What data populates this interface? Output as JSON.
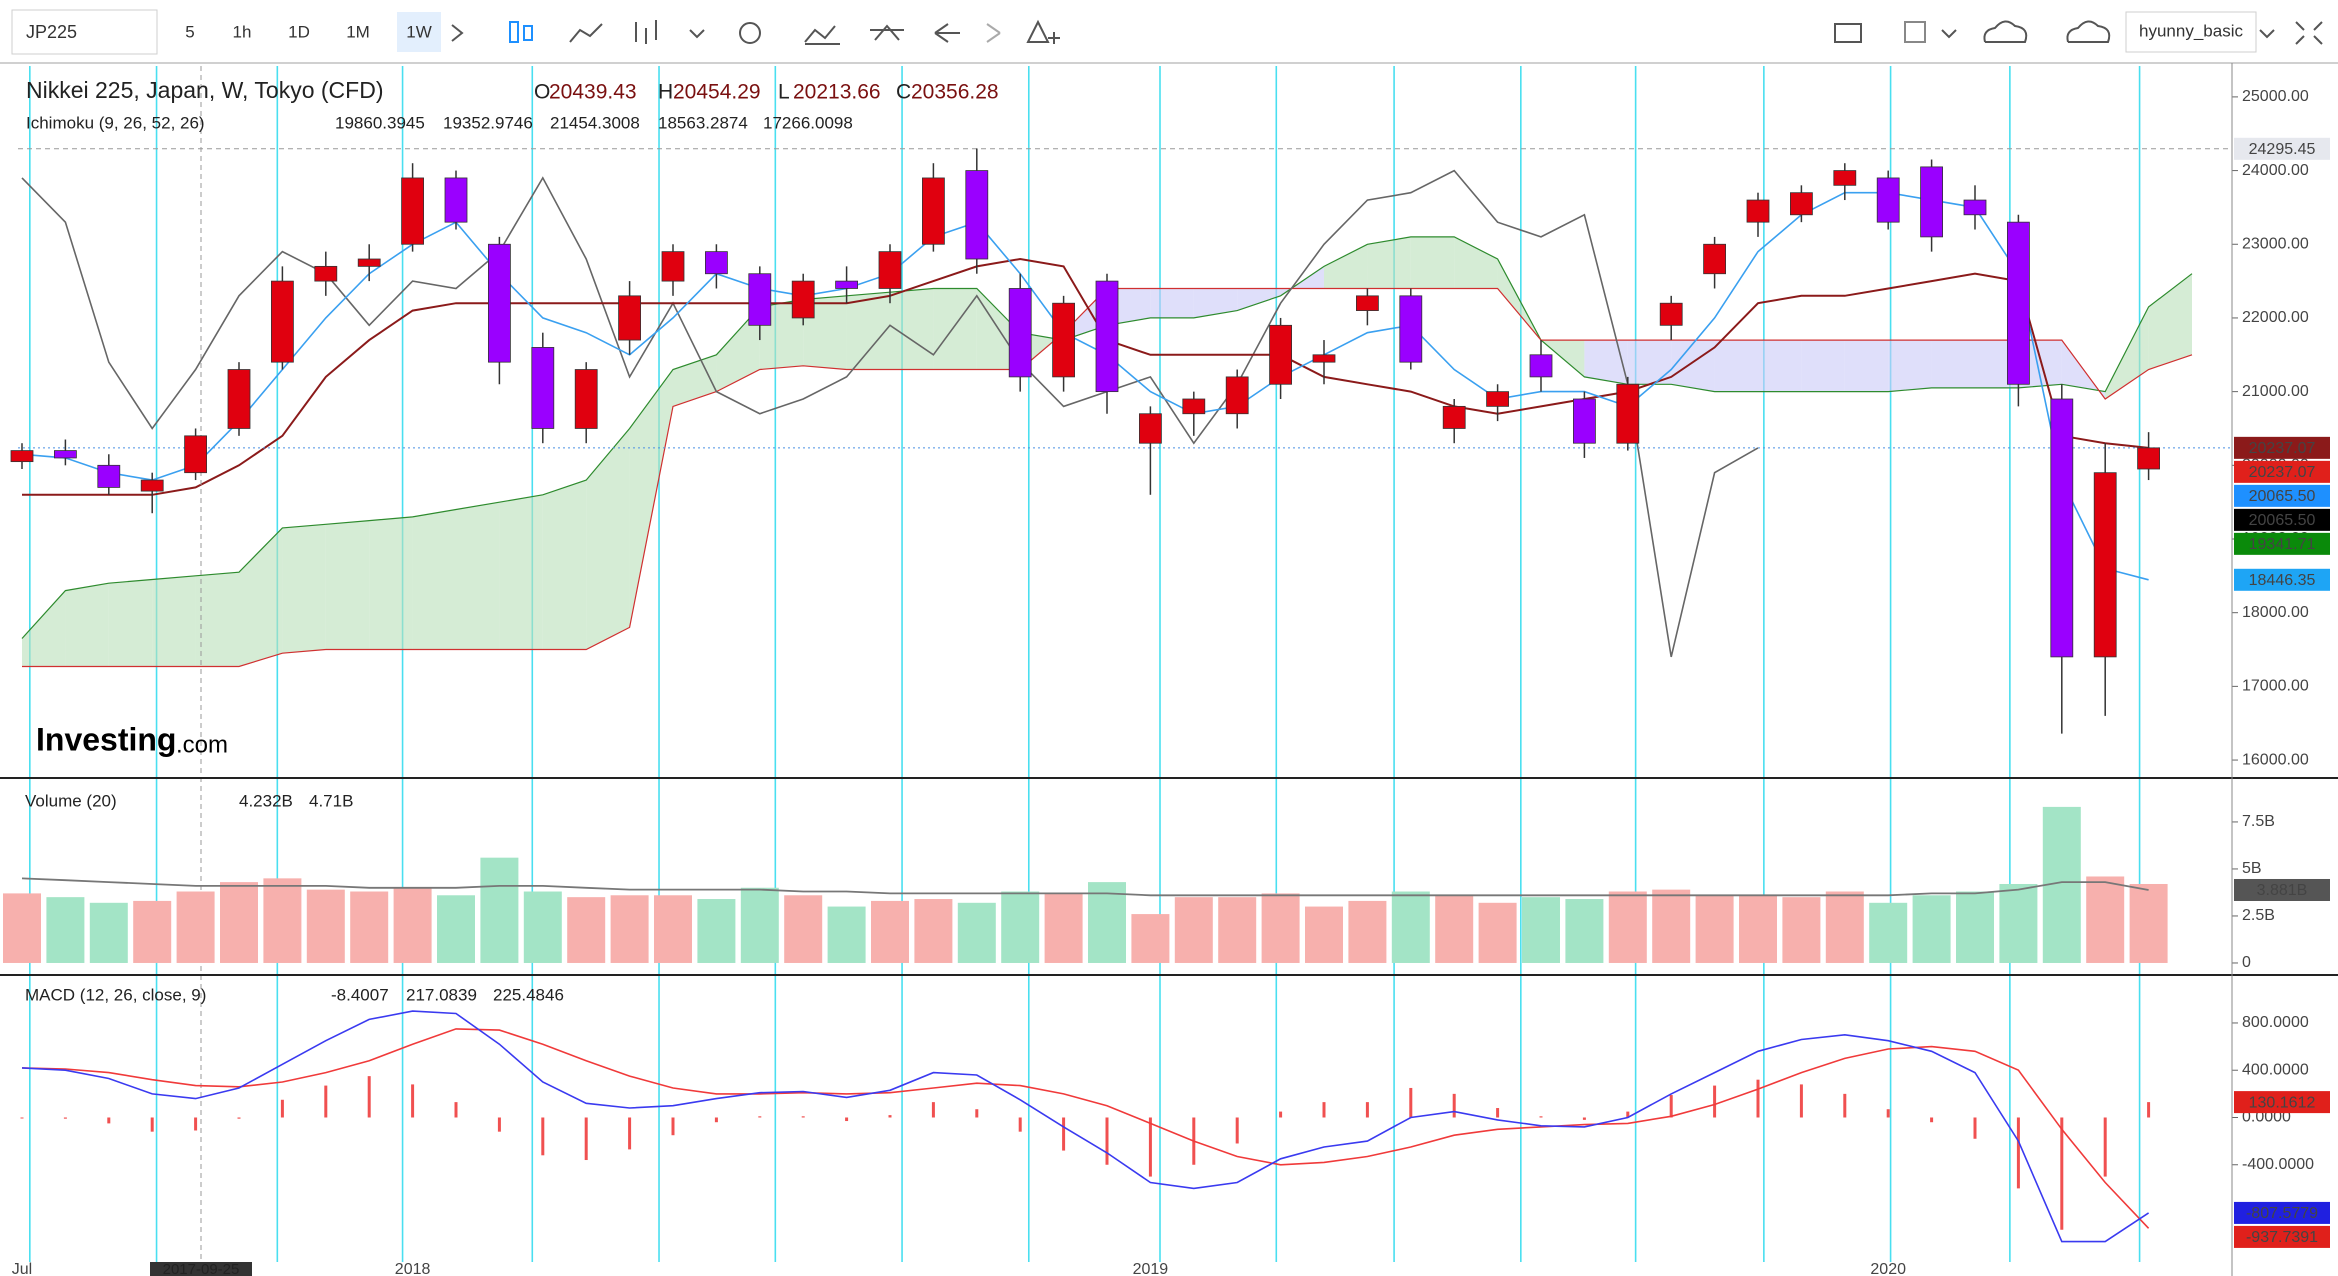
{
  "toolbar": {
    "symbol": "JP225",
    "intervals": [
      "5",
      "1h",
      "1D",
      "1M",
      "1W"
    ],
    "active_interval": "1W",
    "user": "hyunny_basic"
  },
  "chart_data": [
    {
      "type": "candlestick",
      "title": "Nikkei 225, Japan, W, Tokyo (CFD)",
      "ohlc_legend": [
        {
          "key": "O",
          "value": 20439.43
        },
        {
          "key": "H",
          "value": 20454.29
        },
        {
          "key": "L",
          "value": 20213.66
        },
        {
          "key": "C",
          "value": 20356.28
        }
      ],
      "indicator": {
        "name": "Ichimoku (9, 26, 52, 26)",
        "values": [
          {
            "value": 19860.3945,
            "color": "#1e90ff"
          },
          {
            "value": 19352.9746,
            "color": "#8b1a1a"
          },
          {
            "value": 21454.3008,
            "color": "#000000"
          },
          {
            "value": 18563.2874,
            "color": "#0a8a0a"
          },
          {
            "value": 17266.0098,
            "color": "#e0201b"
          }
        ]
      },
      "categories": [
        "Jul",
        null,
        null,
        null,
        null,
        null,
        null,
        null,
        null,
        "2018",
        null,
        null,
        null,
        null,
        null,
        null,
        null,
        null,
        null,
        null,
        null,
        null,
        null,
        null,
        null,
        null,
        "2019",
        null,
        null,
        null,
        null,
        null,
        null,
        null,
        null,
        null,
        null,
        null,
        null,
        null,
        null,
        null,
        null,
        "2020",
        null,
        null,
        null,
        null,
        null,
        null
      ],
      "candles": [
        [
          20050,
          20300,
          19950,
          20200
        ],
        [
          20200,
          20350,
          20000,
          20100
        ],
        [
          20000,
          20150,
          19600,
          19700
        ],
        [
          19650,
          19900,
          19350,
          19800
        ],
        [
          19900,
          20500,
          19800,
          20400
        ],
        [
          20500,
          21400,
          20400,
          21300
        ],
        [
          21400,
          22700,
          21300,
          22500
        ],
        [
          22500,
          22900,
          22300,
          22700
        ],
        [
          22700,
          23000,
          22500,
          22800
        ],
        [
          23000,
          24100,
          22900,
          23900
        ],
        [
          23900,
          24000,
          23200,
          23300
        ],
        [
          23000,
          23100,
          21100,
          21400
        ],
        [
          21600,
          21800,
          20300,
          20500
        ],
        [
          20500,
          21400,
          20300,
          21300
        ],
        [
          21700,
          22500,
          21500,
          22300
        ],
        [
          22500,
          23000,
          22300,
          22900
        ],
        [
          22900,
          23000,
          22400,
          22600
        ],
        [
          22600,
          22700,
          21700,
          21900
        ],
        [
          22000,
          22600,
          21900,
          22500
        ],
        [
          22500,
          22700,
          22200,
          22400
        ],
        [
          22400,
          23000,
          22200,
          22900
        ],
        [
          23000,
          24100,
          22900,
          23900
        ],
        [
          24000,
          24300,
          22600,
          22800
        ],
        [
          22400,
          22600,
          21000,
          21200
        ],
        [
          21200,
          22300,
          21000,
          22200
        ],
        [
          22500,
          22600,
          20700,
          21000
        ],
        [
          20300,
          20800,
          19600,
          20700
        ],
        [
          20700,
          21000,
          20400,
          20900
        ],
        [
          20700,
          21300,
          20500,
          21200
        ],
        [
          21100,
          22000,
          20900,
          21900
        ],
        [
          21400,
          21700,
          21100,
          21500
        ],
        [
          22100,
          22400,
          21900,
          22300
        ],
        [
          22300,
          22400,
          21300,
          21400
        ],
        [
          20500,
          20900,
          20300,
          20800
        ],
        [
          20800,
          21100,
          20600,
          21000
        ],
        [
          21500,
          21700,
          21000,
          21200
        ],
        [
          20900,
          21000,
          20100,
          20300
        ],
        [
          20300,
          21200,
          20200,
          21100
        ],
        [
          21900,
          22300,
          21700,
          22200
        ],
        [
          22600,
          23100,
          22400,
          23000
        ],
        [
          23300,
          23700,
          23100,
          23600
        ],
        [
          23400,
          23800,
          23300,
          23700
        ],
        [
          23800,
          24100,
          23600,
          24000
        ],
        [
          23900,
          24000,
          23200,
          23300
        ],
        [
          24050,
          24150,
          22900,
          23100
        ],
        [
          23600,
          23800,
          23200,
          23400
        ],
        [
          23300,
          23400,
          20800,
          21100
        ],
        [
          20900,
          21100,
          16358,
          17400
        ],
        [
          17400,
          20300,
          16600,
          19900
        ],
        [
          19950,
          20450,
          19800,
          20237
        ]
      ],
      "up_color": "#e0000f",
      "down_color": "#9a00ff",
      "conversion_line": {
        "color": "#3aa0f0",
        "values": [
          20150,
          20100,
          19900,
          19800,
          20000,
          20600,
          21300,
          22000,
          22600,
          23000,
          23300,
          22600,
          22000,
          21800,
          21500,
          22000,
          22600,
          22400,
          22300,
          22400,
          22600,
          23100,
          23300,
          22600,
          21800,
          21500,
          21000,
          20700,
          20800,
          21200,
          21500,
          21800,
          21900,
          21300,
          20900,
          21000,
          21000,
          20800,
          21300,
          22000,
          22900,
          23400,
          23700,
          23700,
          23600,
          23500,
          22600,
          19800,
          18600,
          18446
        ]
      },
      "base_line": {
        "color": "#8b1a1a",
        "values": [
          19600,
          19600,
          19600,
          19600,
          19700,
          20000,
          20400,
          21200,
          21700,
          22100,
          22200,
          22200,
          22200,
          22200,
          22200,
          22200,
          22200,
          22200,
          22200,
          22200,
          22300,
          22500,
          22700,
          22800,
          22700,
          21700,
          21500,
          21500,
          21500,
          21500,
          21200,
          21100,
          21000,
          20800,
          20700,
          20800,
          20900,
          21000,
          21200,
          21600,
          22200,
          22300,
          22300,
          22400,
          22500,
          22600,
          22500,
          20400,
          20300,
          20237
        ]
      },
      "lagging_span": {
        "color": "#666666",
        "values": [
          23900,
          23300,
          21400,
          20500,
          21300,
          22300,
          22900,
          22600,
          21900,
          22500,
          22400,
          22900,
          23900,
          22800,
          21200,
          22200,
          21000,
          20700,
          20900,
          21200,
          21900,
          21500,
          22300,
          21400,
          20800,
          21000,
          21200,
          20300,
          21100,
          22200,
          23000,
          23600,
          23700,
          24000,
          23300,
          23100,
          23400,
          21100,
          17400,
          19900,
          20237,
          null,
          null,
          null,
          null,
          null,
          null,
          null,
          null,
          null
        ]
      },
      "leading_span_a": {
        "color": "#2e8b2e",
        "values": [
          17650,
          18300,
          18400,
          18450,
          18500,
          18550,
          19150,
          19200,
          19250,
          19300,
          19400,
          19500,
          19600,
          19800,
          20500,
          21300,
          21500,
          22150,
          22250,
          22300,
          22350,
          22400,
          22400,
          21800,
          21700,
          21900,
          22000,
          22000,
          22100,
          22300,
          22700,
          23000,
          23100,
          23100,
          22800,
          21700,
          21200,
          21100,
          21100,
          21000,
          21000,
          21000,
          21000,
          21000,
          21050,
          21050,
          21050,
          21100,
          21000,
          22150,
          22600
        ]
      },
      "leading_span_b": {
        "color": "#d03030",
        "values": [
          17270,
          17270,
          17270,
          17270,
          17270,
          17270,
          17450,
          17500,
          17500,
          17500,
          17500,
          17500,
          17500,
          17500,
          17800,
          20800,
          21000,
          21300,
          21350,
          21300,
          21300,
          21300,
          21300,
          21300,
          21800,
          22400,
          22400,
          22400,
          22400,
          22400,
          22400,
          22400,
          22400,
          22400,
          22400,
          21700,
          21700,
          21700,
          21700,
          21700,
          21700,
          21700,
          21700,
          21700,
          21700,
          21700,
          21700,
          21700,
          20900,
          21300,
          21500
        ]
      },
      "cloud_up_fill": "#b9dfb9",
      "cloud_down_fill": "#c9c9f7",
      "ylim": [
        15770,
        25460
      ],
      "yticks": [
        {
          "value": 25000,
          "label": "25000.00"
        },
        {
          "value": 24000,
          "label": "24000.00"
        },
        {
          "value": 23000,
          "label": "23000.00"
        },
        {
          "value": 22000,
          "label": "22000.00"
        },
        {
          "value": 21000,
          "label": "21000.00"
        },
        {
          "value": 20000,
          "label": "20000.00"
        },
        {
          "value": 19000,
          "label": "19000.00"
        },
        {
          "value": 18000,
          "label": "18000.00"
        },
        {
          "value": 17000,
          "label": "17000.00"
        },
        {
          "value": 16000,
          "label": "16000.00"
        }
      ],
      "crosshair": {
        "value": 24295.45,
        "x_label": "2017-09-25"
      },
      "price_tags": [
        {
          "value": 20237.07,
          "bg": "#8b1a1a",
          "fg": "#ffffff"
        },
        {
          "value": 20237.07,
          "bg": "#e0201b",
          "fg": "#ffffff"
        },
        {
          "value": 20065.5,
          "label": "20065.50",
          "bg": "#1e90ff",
          "fg": "#ffffff"
        },
        {
          "value": 20065.5,
          "label": "20065.50",
          "bg": "#000000",
          "fg": "#ffffff"
        },
        {
          "value": 19341.71,
          "bg": "#0a8a0a",
          "fg": "#ffffff"
        },
        {
          "value": 18446.35,
          "bg": "#1ea5f5",
          "fg": "#ffffff"
        }
      ],
      "logo": "Investing",
      "logo_suffix": ".com"
    },
    {
      "type": "volume",
      "title": "Volume (20)",
      "legend": [
        {
          "value": 4.232,
          "label": "4.232B",
          "color": "#f07070"
        },
        {
          "value": 4.71,
          "label": "4.71B",
          "color": "#000000"
        }
      ],
      "values": [
        3.7,
        3.5,
        3.2,
        3.3,
        3.8,
        4.3,
        4.5,
        3.9,
        3.8,
        4.0,
        3.6,
        5.6,
        3.8,
        3.5,
        3.6,
        3.6,
        3.4,
        4.0,
        3.6,
        3.0,
        3.3,
        3.4,
        3.2,
        3.8,
        3.7,
        4.3,
        2.6,
        3.5,
        3.5,
        3.7,
        3.0,
        3.3,
        3.8,
        3.6,
        3.2,
        3.5,
        3.4,
        3.8,
        3.9,
        3.6,
        3.6,
        3.5,
        3.8,
        3.2,
        3.6,
        3.8,
        4.2,
        8.3,
        4.6,
        4.2
      ],
      "up_color": "#f7b0ad",
      "down_color": "#a3e4c6",
      "moving_average": {
        "color": "#777777",
        "values": [
          4.5,
          4.4,
          4.3,
          4.2,
          4.1,
          4.1,
          4.1,
          4.1,
          4.0,
          4.0,
          4.0,
          4.1,
          4.1,
          4.0,
          3.9,
          3.9,
          3.9,
          3.9,
          3.8,
          3.8,
          3.7,
          3.7,
          3.7,
          3.7,
          3.7,
          3.7,
          3.6,
          3.6,
          3.6,
          3.6,
          3.6,
          3.6,
          3.6,
          3.6,
          3.6,
          3.6,
          3.6,
          3.6,
          3.6,
          3.6,
          3.6,
          3.6,
          3.6,
          3.6,
          3.7,
          3.7,
          3.9,
          4.3,
          4.3,
          3.88
        ]
      },
      "ylim": [
        -0.48,
        9.73
      ],
      "yticks": [
        {
          "value": 7.5,
          "label": "7.5B"
        },
        {
          "value": 5,
          "label": "5B"
        },
        {
          "value": 2.5,
          "label": "2.5B"
        },
        0
      ],
      "price_tags": [
        {
          "value": 3.881,
          "label": "3.881B",
          "bg": "#555555",
          "fg": "#ffffff"
        }
      ]
    },
    {
      "type": "macd",
      "title": "MACD (12, 26, close, 9)",
      "legend": [
        {
          "value": -8.4007,
          "color": "#e0201b"
        },
        {
          "value": 217.0839,
          "color": "#2020d0"
        },
        {
          "value": 225.4846,
          "color": "#e0201b"
        }
      ],
      "macd": {
        "color": "#3a3af0",
        "values": [
          420,
          400,
          330,
          200,
          160,
          250,
          450,
          650,
          830,
          900,
          880,
          620,
          300,
          120,
          80,
          100,
          160,
          210,
          220,
          170,
          230,
          380,
          360,
          150,
          -80,
          -300,
          -550,
          -600,
          -550,
          -350,
          -250,
          -200,
          0,
          50,
          -20,
          -70,
          -80,
          0,
          200,
          380,
          560,
          660,
          700,
          650,
          560,
          380,
          -200,
          -1050,
          -1050,
          -807.5779
        ]
      },
      "signal": {
        "color": "#f03a3a",
        "values": [
          420,
          410,
          380,
          320,
          270,
          260,
          300,
          380,
          480,
          620,
          750,
          740,
          620,
          480,
          350,
          250,
          200,
          200,
          210,
          200,
          210,
          250,
          290,
          270,
          200,
          100,
          -50,
          -200,
          -330,
          -400,
          -380,
          -330,
          -250,
          -150,
          -100,
          -80,
          -60,
          -50,
          10,
          110,
          240,
          380,
          500,
          580,
          600,
          560,
          400,
          -100,
          -550,
          -937.7391
        ]
      },
      "histogram": {
        "color": "#f05050",
        "values": [
          0,
          -10,
          -50,
          -120,
          -110,
          -10,
          150,
          270,
          350,
          280,
          130,
          -120,
          -320,
          -360,
          -270,
          -150,
          -40,
          10,
          10,
          -30,
          20,
          130,
          70,
          -120,
          -280,
          -400,
          -500,
          -400,
          -220,
          50,
          130,
          130,
          250,
          200,
          80,
          10,
          -20,
          50,
          190,
          270,
          320,
          280,
          200,
          70,
          -40,
          -180,
          -600,
          -950,
          -500,
          130.1612
        ]
      },
      "ylim": [
        -1223,
        1189
      ],
      "yticks": [
        {
          "value": 800,
          "label": "800.0000"
        },
        {
          "value": 400,
          "label": "400.0000"
        },
        {
          "value": 0,
          "label": "0.0000"
        },
        {
          "value": -400,
          "label": "-400.0000"
        }
      ],
      "price_tags": [
        {
          "value": 130.1612,
          "bg": "#e0201b",
          "fg": "#ffffff"
        },
        {
          "value": -807.5779,
          "bg": "#2020e0",
          "fg": "#ffffff"
        },
        {
          "value": -937.7391,
          "bg": "#e0201b",
          "fg": "#ffffff"
        }
      ]
    }
  ]
}
